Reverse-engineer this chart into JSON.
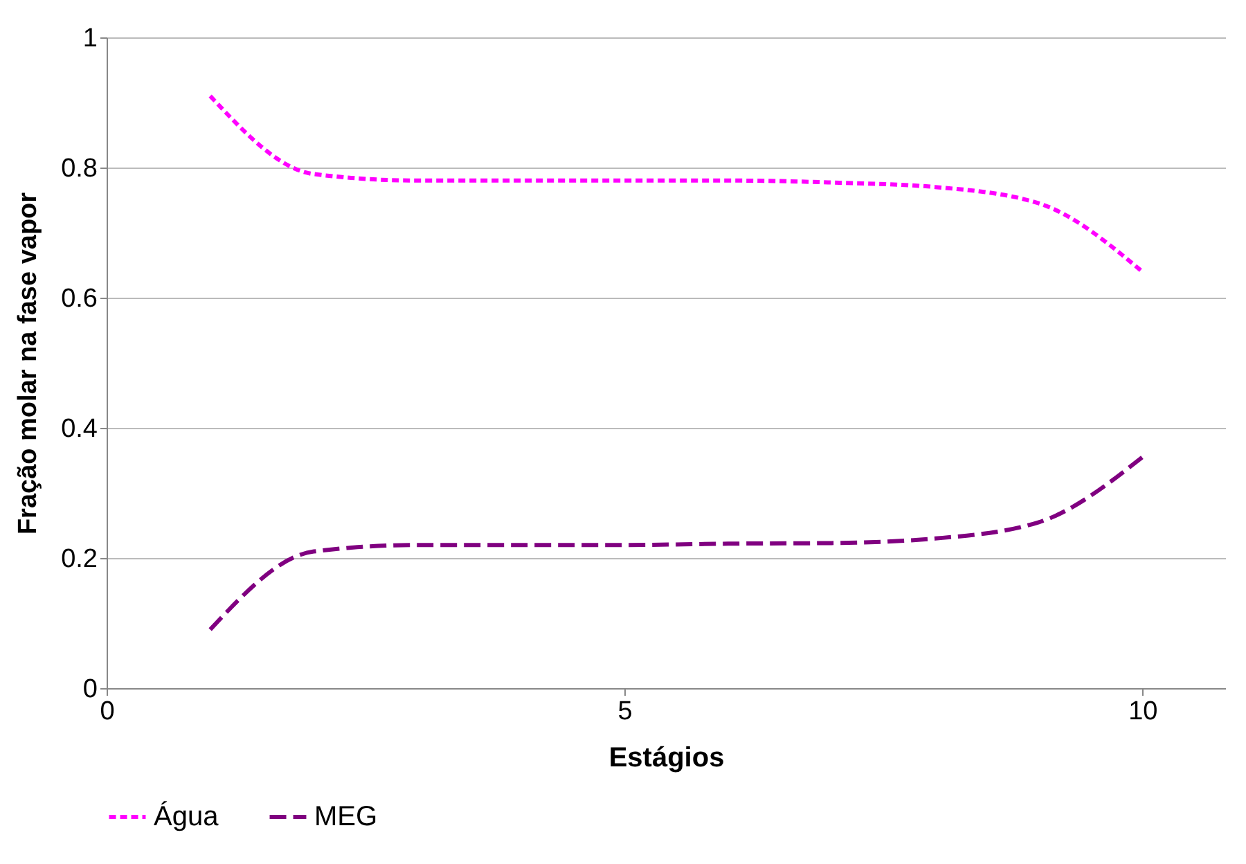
{
  "chart_data": {
    "type": "line",
    "xlabel": "Estágios",
    "ylabel": "Fração molar na fase vapor",
    "x": [
      1,
      2,
      3,
      4,
      5,
      6,
      7,
      8,
      9,
      10
    ],
    "series": [
      {
        "name": "Água",
        "color": "#ff00ff",
        "line_style": "dotted",
        "values": [
          0.91,
          0.79,
          0.78,
          0.78,
          0.78,
          0.78,
          0.777,
          0.77,
          0.745,
          0.64
        ]
      },
      {
        "name": "MEG",
        "color": "#800080",
        "line_style": "dashed",
        "values": [
          0.09,
          0.21,
          0.22,
          0.22,
          0.22,
          0.222,
          0.223,
          0.23,
          0.255,
          0.355
        ]
      }
    ],
    "xlim": [
      0,
      10.8
    ],
    "xticks": [
      0,
      5,
      10
    ],
    "ylim": [
      0,
      1
    ],
    "yticks": [
      0,
      0.2,
      0.4,
      0.6,
      0.8,
      1
    ],
    "grid": "y",
    "legend": "bottom",
    "marker": "none"
  }
}
